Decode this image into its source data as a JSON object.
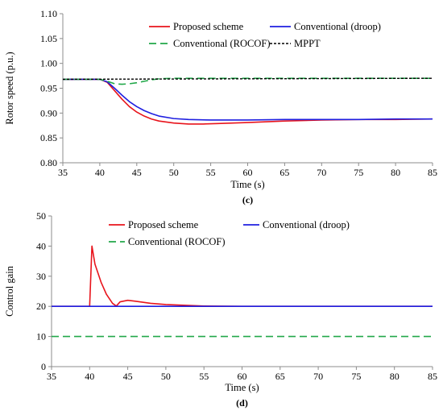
{
  "chart_data": [
    {
      "panel_label": "(c)",
      "type": "line",
      "xlabel": "Time (s)",
      "ylabel": "Rotor speed (p.u.)",
      "xlim": [
        35,
        85
      ],
      "ylim": [
        0.8,
        1.1
      ],
      "x_ticks": [
        35,
        40,
        45,
        50,
        55,
        60,
        65,
        70,
        75,
        80,
        85
      ],
      "y_ticks": [
        0.8,
        0.85,
        0.9,
        0.95,
        1.0,
        1.05,
        1.1
      ],
      "x_tick_labels": [
        "35",
        "40",
        "45",
        "50",
        "55",
        "60",
        "65",
        "70",
        "75",
        "80",
        "85"
      ],
      "y_tick_labels": [
        "0.80",
        "0.85",
        "0.90",
        "0.95",
        "1.00",
        "1.05",
        "1.10"
      ],
      "grid": false,
      "legend_position": "top",
      "series": [
        {
          "name": "Proposed scheme",
          "color": "#e8141c",
          "style": "solid",
          "points": [
            [
              35,
              0.968
            ],
            [
              40,
              0.968
            ],
            [
              41,
              0.962
            ],
            [
              42,
              0.945
            ],
            [
              43,
              0.928
            ],
            [
              44,
              0.913
            ],
            [
              45,
              0.902
            ],
            [
              46,
              0.894
            ],
            [
              47,
              0.888
            ],
            [
              48,
              0.884
            ],
            [
              50,
              0.88
            ],
            [
              52,
              0.878
            ],
            [
              54,
              0.878
            ],
            [
              56,
              0.879
            ],
            [
              60,
              0.881
            ],
            [
              65,
              0.884
            ],
            [
              70,
              0.886
            ],
            [
              75,
              0.887
            ],
            [
              80,
              0.887
            ],
            [
              85,
              0.888
            ]
          ]
        },
        {
          "name": "Conventional (droop)",
          "color": "#1f1fe0",
          "style": "solid",
          "points": [
            [
              35,
              0.968
            ],
            [
              40,
              0.968
            ],
            [
              41,
              0.963
            ],
            [
              42,
              0.95
            ],
            [
              43,
              0.936
            ],
            [
              44,
              0.923
            ],
            [
              45,
              0.913
            ],
            [
              46,
              0.905
            ],
            [
              47,
              0.899
            ],
            [
              48,
              0.894
            ],
            [
              50,
              0.889
            ],
            [
              52,
              0.887
            ],
            [
              55,
              0.886
            ],
            [
              60,
              0.886
            ],
            [
              65,
              0.887
            ],
            [
              70,
              0.887
            ],
            [
              75,
              0.887
            ],
            [
              80,
              0.888
            ],
            [
              85,
              0.888
            ]
          ]
        },
        {
          "name": "Conventional (ROCOF)",
          "color": "#22a84a",
          "style": "dashed",
          "points": [
            [
              35,
              0.968
            ],
            [
              40,
              0.968
            ],
            [
              41,
              0.964
            ],
            [
              42,
              0.959
            ],
            [
              43,
              0.958
            ],
            [
              44,
              0.959
            ],
            [
              45,
              0.961
            ],
            [
              46,
              0.964
            ],
            [
              47,
              0.967
            ],
            [
              48,
              0.969
            ],
            [
              50,
              0.97
            ],
            [
              55,
              0.97
            ],
            [
              85,
              0.97
            ]
          ]
        },
        {
          "name": "MPPT",
          "color": "#000000",
          "style": "dotted",
          "points": [
            [
              35,
              0.968
            ],
            [
              85,
              0.97
            ]
          ]
        }
      ]
    },
    {
      "panel_label": "(d)",
      "type": "line",
      "xlabel": "Time (s)",
      "ylabel": "Control gain",
      "xlim": [
        35,
        85
      ],
      "ylim": [
        0,
        50
      ],
      "x_ticks": [
        35,
        40,
        45,
        50,
        55,
        60,
        65,
        70,
        75,
        80,
        85
      ],
      "y_ticks": [
        0,
        10,
        20,
        30,
        40,
        50
      ],
      "x_tick_labels": [
        "35",
        "40",
        "45",
        "50",
        "55",
        "60",
        "65",
        "70",
        "75",
        "80",
        "85"
      ],
      "y_tick_labels": [
        "0",
        "10",
        "20",
        "30",
        "40",
        "50"
      ],
      "grid": false,
      "legend_position": "top",
      "series": [
        {
          "name": "Proposed scheme",
          "color": "#e8141c",
          "style": "solid",
          "points": [
            [
              35,
              20
            ],
            [
              40,
              20
            ],
            [
              40.3,
              40
            ],
            [
              40.7,
              34
            ],
            [
              41.5,
              28
            ],
            [
              42.2,
              24
            ],
            [
              43,
              21
            ],
            [
              43.5,
              20.1
            ],
            [
              44,
              21.5
            ],
            [
              45,
              22
            ],
            [
              46,
              21.7
            ],
            [
              48,
              21
            ],
            [
              50,
              20.6
            ],
            [
              55,
              20.1
            ],
            [
              60,
              20
            ],
            [
              85,
              20
            ]
          ]
        },
        {
          "name": "Conventional (droop)",
          "color": "#1f1fe0",
          "style": "solid",
          "points": [
            [
              35,
              20
            ],
            [
              85,
              20
            ]
          ]
        },
        {
          "name": "Conventional (ROCOF)",
          "color": "#22a84a",
          "style": "dashed",
          "points": [
            [
              35,
              10
            ],
            [
              85,
              10
            ]
          ]
        }
      ]
    }
  ]
}
